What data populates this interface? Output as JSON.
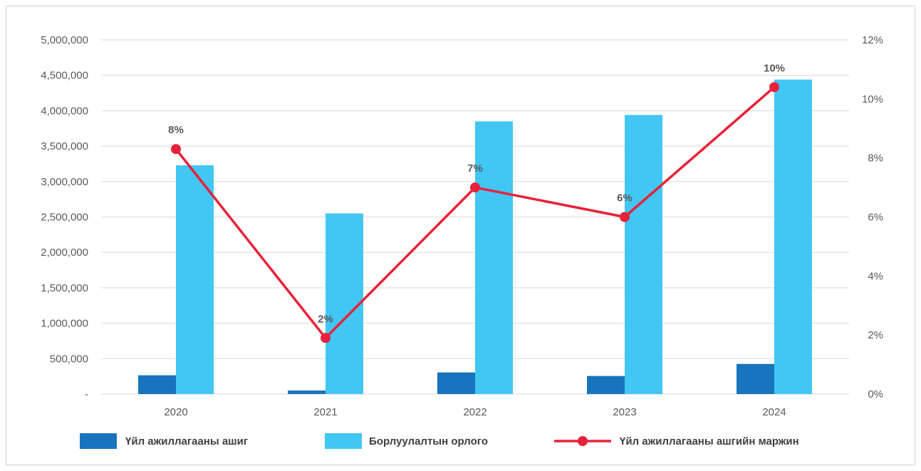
{
  "colors": {
    "profit": "#1874bd",
    "revenue": "#42c6f3",
    "margin": "#e8213a",
    "grid": "#d9d9d9",
    "text": "#595959"
  },
  "chart_data": {
    "type": "bar",
    "title": "",
    "xlabel": "",
    "ylabel": "",
    "categories": [
      "2020",
      "2021",
      "2022",
      "2023",
      "2024"
    ],
    "series": [
      {
        "name": "Үйл ажиллагааны ашиг",
        "type": "bar",
        "axis": "left",
        "values": [
          265000,
          50000,
          305000,
          255000,
          425000
        ]
      },
      {
        "name": "Борлуулалтын орлого",
        "type": "bar",
        "axis": "left",
        "values": [
          3230000,
          2550000,
          3850000,
          3940000,
          4440000
        ]
      },
      {
        "name": "Үйл ажиллагааны ашгийн маржин",
        "type": "line",
        "axis": "right",
        "values": [
          8.3,
          1.9,
          7.0,
          6.0,
          10.4
        ],
        "data_labels": [
          "8%",
          "2%",
          "7%",
          "6%",
          "10%"
        ]
      }
    ],
    "ylim": [
      0,
      5000000
    ],
    "y_ticks": [
      {
        "value": 0,
        "label": "-"
      },
      {
        "value": 500000,
        "label": "500,000"
      },
      {
        "value": 1000000,
        "label": "1,000,000"
      },
      {
        "value": 1500000,
        "label": "1,500,000"
      },
      {
        "value": 2000000,
        "label": "2,000,000"
      },
      {
        "value": 2500000,
        "label": "2,500,000"
      },
      {
        "value": 3000000,
        "label": "3,000,000"
      },
      {
        "value": 3500000,
        "label": "3,500,000"
      },
      {
        "value": 4000000,
        "label": "4,000,000"
      },
      {
        "value": 4500000,
        "label": "4,500,000"
      },
      {
        "value": 5000000,
        "label": "5,000,000"
      }
    ],
    "y2lim": [
      0,
      12
    ],
    "y2_ticks": [
      {
        "value": 0,
        "label": "0%"
      },
      {
        "value": 2,
        "label": "2%"
      },
      {
        "value": 4,
        "label": "4%"
      },
      {
        "value": 6,
        "label": "6%"
      },
      {
        "value": 8,
        "label": "8%"
      },
      {
        "value": 10,
        "label": "10%"
      },
      {
        "value": 12,
        "label": "12%"
      }
    ],
    "grid": true,
    "legend_position": "bottom"
  }
}
